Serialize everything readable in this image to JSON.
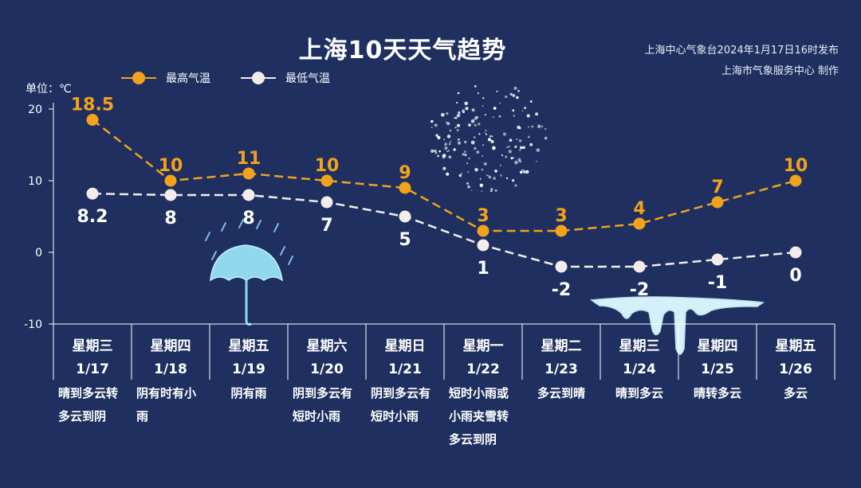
{
  "header": {
    "title": "上海10天天气趋势",
    "publisher_line1": "上海中心气象台2024年1月17日16时发布",
    "publisher_line2": "上海市气象服务中心 制作",
    "unit_label": "单位：℃"
  },
  "colors": {
    "background": "#1f3060",
    "high": "#f2a21c",
    "low": "#f3ecea",
    "axis": "#ffffff"
  },
  "chart_data": {
    "type": "line",
    "title": "上海10天天气趋势",
    "ylabel": "单位：℃",
    "ylim": [
      -10,
      20
    ],
    "yticks": [
      "20",
      "10",
      "0",
      "-10"
    ],
    "legend": "top-left",
    "grid": false,
    "categories": [
      {
        "weekday": "星期三",
        "date": "1/17"
      },
      {
        "weekday": "星期四",
        "date": "1/18"
      },
      {
        "weekday": "星期五",
        "date": "1/19"
      },
      {
        "weekday": "星期六",
        "date": "1/20"
      },
      {
        "weekday": "星期日",
        "date": "1/21"
      },
      {
        "weekday": "星期一",
        "date": "1/22"
      },
      {
        "weekday": "星期二",
        "date": "1/23"
      },
      {
        "weekday": "星期三",
        "date": "1/24"
      },
      {
        "weekday": "星期四",
        "date": "1/25"
      },
      {
        "weekday": "星期五",
        "date": "1/26"
      }
    ],
    "series": [
      {
        "name": "最高气温",
        "values": [
          18.5,
          10,
          11,
          10,
          9,
          3,
          3,
          4,
          7,
          10
        ],
        "labels": [
          "18.5",
          "10",
          "11",
          "10",
          "9",
          "3",
          "3",
          "4",
          "7",
          "10"
        ]
      },
      {
        "name": "最低气温",
        "values": [
          8.2,
          8,
          8,
          7,
          5,
          1,
          -2,
          -2,
          -1,
          0
        ],
        "labels": [
          "8.2",
          "8",
          "8",
          "7",
          "5",
          "1",
          "-2",
          "-2",
          "-1",
          "0"
        ]
      }
    ],
    "descriptions": [
      [
        "晴到多云转",
        "多云到阴"
      ],
      [
        "阴有时有小",
        "雨"
      ],
      [
        "阴有雨"
      ],
      [
        "阴到多云有",
        "短时小雨"
      ],
      [
        "阴到多云有",
        "短时小雨"
      ],
      [
        "短时小雨或",
        "小雨夹雪转",
        "多云到阴"
      ],
      [
        "多云到晴"
      ],
      [
        "晴到多云"
      ],
      [
        "晴转多云"
      ],
      [
        "多云"
      ]
    ]
  }
}
